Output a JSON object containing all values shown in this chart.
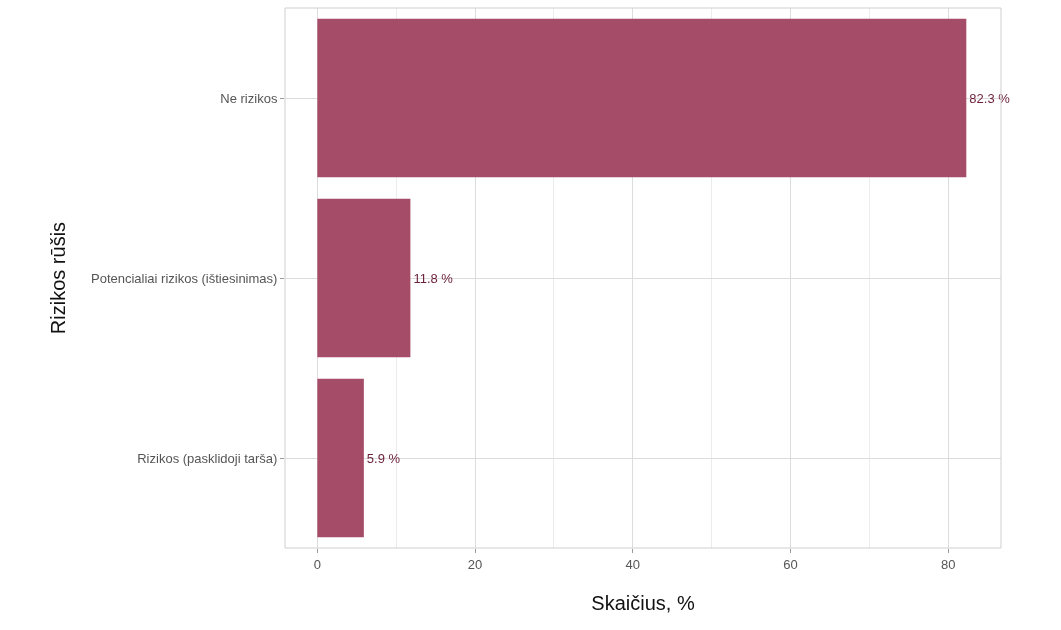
{
  "chart_data": {
    "type": "bar",
    "orientation": "horizontal",
    "xlabel": "Skaičius, %",
    "ylabel": "Rizikos rūšis",
    "categories": [
      "Ne rizikos",
      "Potencialiai rizikos (ištiesinimas)",
      "Rizikos (pasklidoji tarša)"
    ],
    "values": [
      82.3,
      11.8,
      5.9
    ],
    "color": "#a44c68",
    "value_labels": [
      "82.3 %",
      "11.8 %",
      "5.9 %"
    ],
    "xlim": [
      -4.1,
      86.7
    ],
    "xticks": [
      0,
      20,
      40,
      60,
      80
    ],
    "grid": true,
    "legend": false
  }
}
